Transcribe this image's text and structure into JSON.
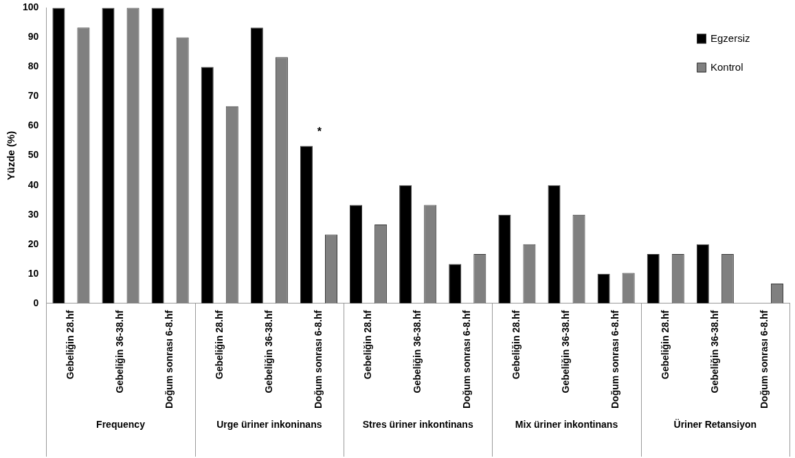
{
  "chart_data": {
    "type": "bar",
    "ylabel": "Yüzde (%)",
    "categories": [
      "Gebeliğin 28.hf",
      "Gebeliğin 36-38.hf",
      "Doğum sonrası 6-8.hf",
      "Gebeliğin 28.hf",
      "Gebeliğin 36-38.hf",
      "Doğum sonrası 6-8.hf",
      "Gebeliğin 28.hf",
      "Gebeliğin 36-38.hf",
      "Doğum sonrası 6-8.hf",
      "Gebeliğin 28.hf",
      "Gebeliğin 36-38.hf",
      "Doğum sonrası 6-8.hf",
      "Gebeliğin 28.hf",
      "Gebeliğin 36-38.hf",
      "Doğum sonrası 6-8.hf"
    ],
    "series": [
      {
        "name": "Egzersiz",
        "color": "#000000",
        "values": [
          100,
          100,
          100,
          80,
          93.3,
          53.3,
          33.3,
          40,
          13.3,
          30,
          40,
          10,
          16.7,
          20,
          0
        ],
        "value_labels": [
          null,
          null,
          null,
          null,
          null,
          "*",
          null,
          null,
          null,
          null,
          null,
          null,
          null,
          null,
          null
        ]
      },
      {
        "name": "Kontrol",
        "color": "#808080",
        "values": [
          93.3,
          100,
          90,
          66.7,
          83.3,
          23.3,
          26.7,
          33.3,
          16.7,
          20,
          30,
          10.3,
          16.7,
          16.7,
          6.7
        ]
      }
    ],
    "annotations": [
      "Frequency",
      "Urge üriner inkoninans",
      "Stres üriner inkontinans",
      "Mix üriner inkontinans",
      "Üriner Retansiyon"
    ],
    "ylim": [
      0,
      100
    ],
    "yticks": [
      0,
      10,
      20,
      30,
      40,
      50,
      60,
      70,
      80,
      90,
      100
    ],
    "grid": false,
    "legend": "top right"
  }
}
